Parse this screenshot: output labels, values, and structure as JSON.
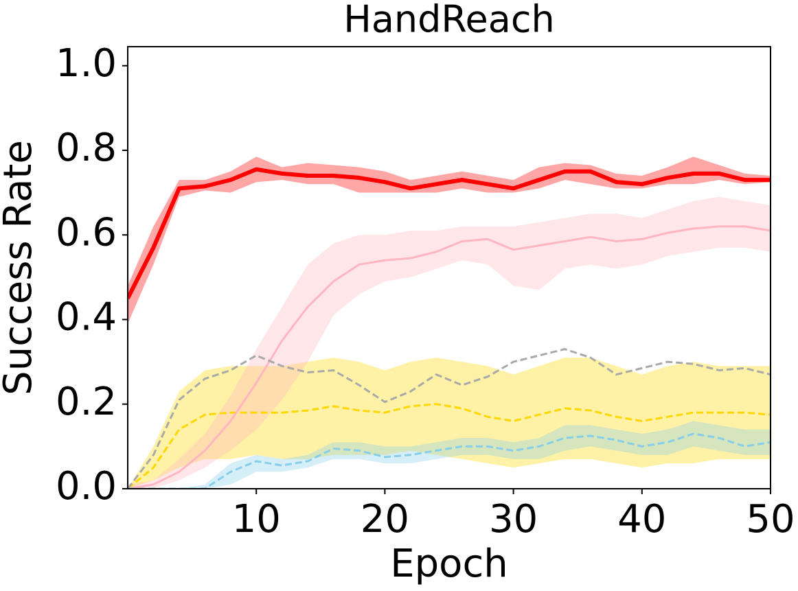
{
  "chart_data": {
    "type": "line",
    "title": "HandReach",
    "xlabel": "Epoch",
    "ylabel": "Success Rate",
    "x": [
      0,
      2,
      4,
      6,
      8,
      10,
      12,
      14,
      16,
      18,
      20,
      22,
      24,
      26,
      28,
      30,
      32,
      34,
      36,
      38,
      40,
      42,
      44,
      46,
      48,
      50
    ],
    "xlim": [
      0,
      50
    ],
    "xticks": [
      10,
      20,
      30,
      40,
      50
    ],
    "ylim": [
      0,
      1.045
    ],
    "yticks": [
      {
        "value": 0,
        "label": "0.0"
      },
      0.2,
      0.4,
      0.6,
      0.8,
      {
        "value": 1,
        "label": "1.0"
      }
    ],
    "series": [
      {
        "color": "#ffd700",
        "dash": true,
        "width": 3,
        "values": [
          0,
          0.05,
          0.14,
          0.175,
          0.18,
          0.18,
          0.18,
          0.185,
          0.195,
          0.185,
          0.18,
          0.195,
          0.2,
          0.19,
          0.17,
          0.16,
          0.175,
          0.19,
          0.185,
          0.17,
          0.16,
          0.17,
          0.18,
          0.18,
          0.18,
          0.175
        ],
        "lower": [
          0,
          0.02,
          0.05,
          0.07,
          0.07,
          0.08,
          0.07,
          0.07,
          0.08,
          0.08,
          0.08,
          0.09,
          0.08,
          0.07,
          0.06,
          0.05,
          0.06,
          0.07,
          0.07,
          0.06,
          0.05,
          0.06,
          0.06,
          0.07,
          0.07,
          0.07
        ],
        "upper": [
          0,
          0.1,
          0.23,
          0.28,
          0.29,
          0.29,
          0.29,
          0.3,
          0.31,
          0.3,
          0.28,
          0.3,
          0.31,
          0.3,
          0.29,
          0.27,
          0.29,
          0.31,
          0.31,
          0.29,
          0.27,
          0.29,
          0.3,
          0.29,
          0.29,
          0.29
        ]
      },
      {
        "color": "#ffb6c1",
        "dash": false,
        "width": 3,
        "values": [
          0,
          0.01,
          0.04,
          0.09,
          0.16,
          0.25,
          0.35,
          0.43,
          0.49,
          0.53,
          0.54,
          0.545,
          0.56,
          0.585,
          0.59,
          0.565,
          0.575,
          0.585,
          0.595,
          0.585,
          0.59,
          0.605,
          0.615,
          0.62,
          0.62,
          0.61
        ],
        "lower": [
          0,
          0,
          0.02,
          0.05,
          0.09,
          0.14,
          0.21,
          0.3,
          0.41,
          0.46,
          0.49,
          0.5,
          0.52,
          0.54,
          0.53,
          0.48,
          0.47,
          0.52,
          0.53,
          0.52,
          0.53,
          0.55,
          0.56,
          0.57,
          0.57,
          0.56
        ],
        "upper": [
          0.01,
          0.02,
          0.07,
          0.13,
          0.22,
          0.33,
          0.43,
          0.53,
          0.58,
          0.6,
          0.6,
          0.61,
          0.61,
          0.62,
          0.62,
          0.62,
          0.63,
          0.64,
          0.65,
          0.65,
          0.64,
          0.66,
          0.68,
          0.69,
          0.68,
          0.67
        ]
      },
      {
        "color": "#87ceeb",
        "dash": true,
        "width": 3,
        "values": [
          0,
          0,
          0,
          0,
          0.04,
          0.065,
          0.055,
          0.065,
          0.095,
          0.09,
          0.075,
          0.08,
          0.09,
          0.1,
          0.1,
          0.09,
          0.1,
          0.12,
          0.125,
          0.115,
          0.1,
          0.11,
          0.13,
          0.12,
          0.1,
          0.11
        ],
        "lower": [
          0,
          0,
          0,
          0,
          0.01,
          0.04,
          0.04,
          0.05,
          0.07,
          0.07,
          0.06,
          0.06,
          0.07,
          0.08,
          0.08,
          0.07,
          0.07,
          0.09,
          0.1,
          0.09,
          0.08,
          0.08,
          0.1,
          0.09,
          0.08,
          0.08
        ],
        "upper": [
          0,
          0,
          0,
          0.01,
          0.06,
          0.08,
          0.07,
          0.08,
          0.11,
          0.11,
          0.1,
          0.1,
          0.11,
          0.12,
          0.12,
          0.11,
          0.12,
          0.15,
          0.15,
          0.14,
          0.13,
          0.14,
          0.16,
          0.15,
          0.14,
          0.14
        ]
      },
      {
        "color": "#a9a9a9",
        "dash": true,
        "width": 3,
        "values": [
          0,
          0.08,
          0.21,
          0.26,
          0.28,
          0.315,
          0.29,
          0.275,
          0.28,
          0.245,
          0.205,
          0.23,
          0.27,
          0.245,
          0.265,
          0.3,
          0.315,
          0.33,
          0.31,
          0.27,
          0.285,
          0.3,
          0.295,
          0.28,
          0.285,
          0.27
        ]
      },
      {
        "color": "#ff0000",
        "dash": false,
        "width": 6,
        "values": [
          0.45,
          0.57,
          0.71,
          0.715,
          0.73,
          0.755,
          0.745,
          0.74,
          0.74,
          0.735,
          0.725,
          0.71,
          0.72,
          0.73,
          0.72,
          0.71,
          0.73,
          0.75,
          0.75,
          0.725,
          0.72,
          0.735,
          0.745,
          0.745,
          0.73,
          0.73
        ],
        "lower": [
          0.39,
          0.53,
          0.69,
          0.705,
          0.7,
          0.725,
          0.73,
          0.72,
          0.72,
          0.7,
          0.7,
          0.7,
          0.7,
          0.71,
          0.7,
          0.7,
          0.71,
          0.73,
          0.72,
          0.71,
          0.71,
          0.72,
          0.72,
          0.73,
          0.72,
          0.725
        ],
        "upper": [
          0.48,
          0.62,
          0.73,
          0.73,
          0.75,
          0.785,
          0.76,
          0.77,
          0.765,
          0.76,
          0.75,
          0.73,
          0.74,
          0.75,
          0.74,
          0.73,
          0.76,
          0.77,
          0.765,
          0.745,
          0.74,
          0.76,
          0.785,
          0.765,
          0.745,
          0.74
        ]
      }
    ]
  }
}
